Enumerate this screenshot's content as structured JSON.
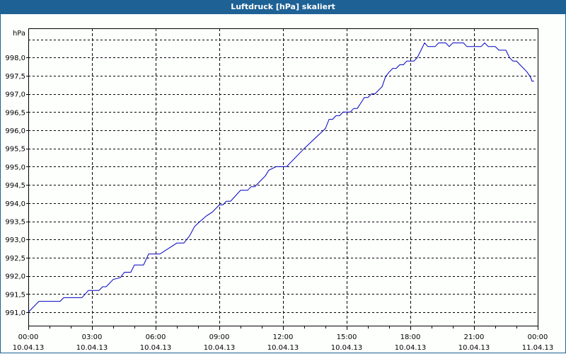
{
  "window": {
    "title": "Luftdruck [hPa] skaliert"
  },
  "colors": {
    "titlebar": "#1e6195",
    "line": "#0000c0",
    "grid": "#000000",
    "background": "#fdfffd"
  },
  "chart_data": {
    "type": "line",
    "title": "Luftdruck [hPa] skaliert",
    "xlabel": "",
    "ylabel": "hPa",
    "ylim": [
      990.65,
      999.0
    ],
    "y_ticks": [
      "991,0",
      "991,5",
      "992,0",
      "992,5",
      "993,0",
      "993,5",
      "994,0",
      "994,5",
      "995,0",
      "995,5",
      "996,0",
      "996,5",
      "997,0",
      "997,5",
      "998,0"
    ],
    "x_ticks": [
      {
        "time": "00:00",
        "date": "10.04.13"
      },
      {
        "time": "03:00",
        "date": "10.04.13"
      },
      {
        "time": "06:00",
        "date": "10.04.13"
      },
      {
        "time": "09:00",
        "date": "10.04.13"
      },
      {
        "time": "12:00",
        "date": "10.04.13"
      },
      {
        "time": "15:00",
        "date": "10.04.13"
      },
      {
        "time": "18:00",
        "date": "10.04.13"
      },
      {
        "time": "21:00",
        "date": "10.04.13"
      },
      {
        "time": "00:00",
        "date": "11.04.13"
      }
    ],
    "grid": true,
    "legend": "none",
    "series": [
      {
        "name": "Luftdruck",
        "x_hours": [
          0,
          0.5,
          1.5,
          1.67,
          2.53,
          2.83,
          3.33,
          3.5,
          3.67,
          4.0,
          4.33,
          4.53,
          4.83,
          5.0,
          5.43,
          5.67,
          6.2,
          7.0,
          7.33,
          7.6,
          7.83,
          8.0,
          8.4,
          8.67,
          9.0,
          9.17,
          9.33,
          9.53,
          10.0,
          10.33,
          10.5,
          10.67,
          11.17,
          11.33,
          11.67,
          12.17,
          13.0,
          14.0,
          14.17,
          14.33,
          14.5,
          14.67,
          14.83,
          15.17,
          15.33,
          15.5,
          15.67,
          15.83,
          16.0,
          16.17,
          16.33,
          16.67,
          16.83,
          17.0,
          17.17,
          17.33,
          17.5,
          17.67,
          17.83,
          18.17,
          18.33,
          18.67,
          18.83,
          19.17,
          19.33,
          19.67,
          19.83,
          20.0,
          20.5,
          20.67,
          21.33,
          21.5,
          21.67,
          22.0,
          22.17,
          22.5,
          22.67,
          22.83,
          23.0,
          23.5,
          23.67,
          23.73,
          23.83
        ],
        "values": [
          991.0,
          991.3,
          991.3,
          991.4,
          991.4,
          991.6,
          991.6,
          991.7,
          991.7,
          991.9,
          991.95,
          992.1,
          992.1,
          992.3,
          992.3,
          992.6,
          992.6,
          992.9,
          992.9,
          993.1,
          993.35,
          993.45,
          993.65,
          993.75,
          993.95,
          993.95,
          994.05,
          994.05,
          994.35,
          994.35,
          994.45,
          994.45,
          994.75,
          994.9,
          995.0,
          995.0,
          995.5,
          996.05,
          996.3,
          996.3,
          996.4,
          996.4,
          996.5,
          996.5,
          996.6,
          996.6,
          996.75,
          996.9,
          996.9,
          997.0,
          997.0,
          997.2,
          997.47,
          997.6,
          997.7,
          997.7,
          997.8,
          997.8,
          997.9,
          997.9,
          998.0,
          998.4,
          998.3,
          998.3,
          998.4,
          998.4,
          998.3,
          998.4,
          998.4,
          998.3,
          998.3,
          998.4,
          998.3,
          998.3,
          998.2,
          998.2,
          998.0,
          997.9,
          997.9,
          997.6,
          997.45,
          997.35,
          997.35
        ]
      }
    ]
  }
}
